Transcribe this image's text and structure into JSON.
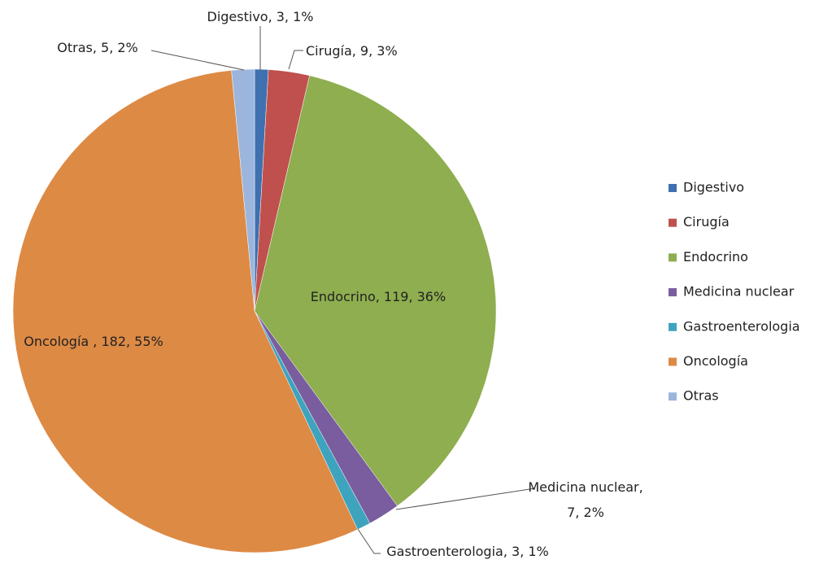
{
  "chart_data": {
    "type": "pie",
    "categories": [
      "Digestivo",
      "Cirugía",
      "Endocrino",
      "Medicina nuclear",
      "Gastroenterologia",
      "Oncología",
      "Otras"
    ],
    "values": [
      3,
      9,
      119,
      7,
      3,
      182,
      5
    ],
    "value_labels": [
      "Digestivo, 3, 1%",
      "Cirugía, 9, 3%",
      "Endocrino, 119, 36%",
      "Medicina nuclear, 7, 2%",
      "Gastroenterologia, 3, 1%",
      "Oncología , 182, 55%",
      "Otras, 5, 2%"
    ],
    "colors": [
      "#3f70b0",
      "#c0504d",
      "#8eae4f",
      "#7a5d9e",
      "#3ea3bd",
      "#dd8a45",
      "#9bb5dd"
    ],
    "legend": "right"
  }
}
